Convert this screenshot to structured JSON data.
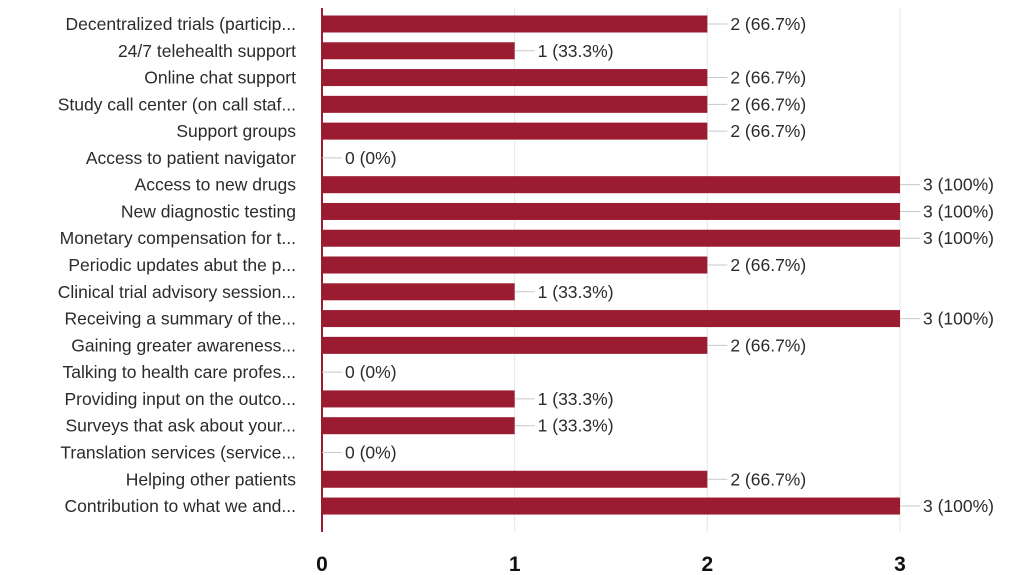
{
  "chart_data": {
    "type": "bar",
    "orientation": "horizontal",
    "categories": [
      "Decentralized trials (particip...",
      "24/7 telehealth support",
      "Online chat support",
      "Study call center (on call staf...",
      "Support groups",
      "Access to patient navigator",
      "Access to new drugs",
      "New diagnostic testing",
      "Monetary compensation for t...",
      "Periodic updates abut the p...",
      "Clinical trial advisory session...",
      "Receiving a summary of the...",
      "Gaining greater awareness...",
      "Talking to health care profes...",
      "Providing input on the outco...",
      "Surveys that ask about your...",
      "Translation services (service...",
      "Helping other patients",
      "Contribution to what we and..."
    ],
    "values": [
      2,
      1,
      2,
      2,
      2,
      0,
      3,
      3,
      3,
      2,
      1,
      3,
      2,
      0,
      1,
      1,
      0,
      2,
      3
    ],
    "data_labels": [
      "2 (66.7%)",
      "1 (33.3%)",
      "2 (66.7%)",
      "2 (66.7%)",
      "2 (66.7%)",
      "0 (0%)",
      "3 (100%)",
      "3 (100%)",
      "3 (100%)",
      "2 (66.7%)",
      "1 (33.3%)",
      "3 (100%)",
      "2 (66.7%)",
      "0 (0%)",
      "1 (33.3%)",
      "1 (33.3%)",
      "0 (0%)",
      "2 (66.7%)",
      "3 (100%)"
    ],
    "xlim": [
      0,
      3
    ],
    "x_ticks": [
      "0",
      "1",
      "2",
      "3"
    ],
    "grid": true,
    "bar_color": "#9b1b30"
  }
}
